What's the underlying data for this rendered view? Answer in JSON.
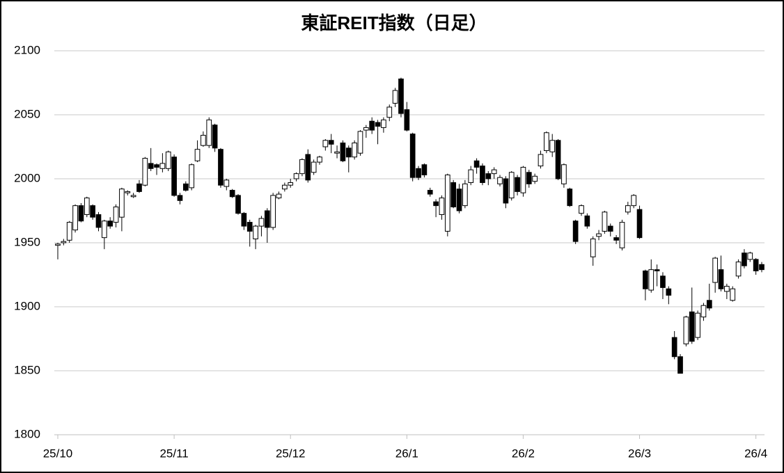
{
  "chart_data": {
    "type": "candlestick",
    "title": "東証REIT指数（日足）",
    "open": [
      1948,
      1950,
      1952,
      1960,
      1979,
      1972,
      1979,
      1972,
      1954,
      1967,
      1966,
      1970,
      1989,
      1986,
      1996,
      1995,
      2012,
      2011,
      2008,
      2008,
      2017,
      1987,
      1996,
      1993,
      2014,
      2026,
      2026,
      2042,
      2023,
      1994,
      1991,
      1987,
      1973,
      1966,
      1953,
      1963,
      1975,
      1962,
      1985,
      1992,
      1995,
      2000,
      2004,
      2019,
      2005,
      2013,
      2025,
      2030,
      2020,
      2028,
      2024,
      2017,
      2020,
      2038,
      2045,
      2044,
      2040,
      2048,
      2059,
      2078,
      2054,
      2035,
      2008,
      2011,
      1991,
      1982,
      1972,
      1959,
      1997,
      1992,
      1979,
      1997,
      2014,
      2010,
      2004,
      2004,
      1996,
      2000,
      1985,
      2001,
      1989,
      2005,
      1998,
      2010,
      2022,
      2021,
      2030,
      1996,
      1992,
      1967,
      1973,
      1971,
      1939,
      1955,
      1959,
      1963,
      1954,
      1946,
      1974,
      1979,
      1976,
      1928,
      1913,
      1929,
      1924,
      1914,
      1876,
      1861,
      1871,
      1896,
      1876,
      1892,
      1905,
      1919,
      1929,
      1912,
      1905,
      1924,
      1942,
      1937,
      1937,
      1933
    ],
    "high": [
      1950,
      1953,
      1967,
      1980,
      1981,
      1986,
      1980,
      1974,
      1968,
      1970,
      1980,
      1993,
      1991,
      1989,
      1999,
      2017,
      2024,
      2012,
      2020,
      2022,
      2019,
      1989,
      1998,
      2012,
      2030,
      2037,
      2048,
      2043,
      2024,
      2000,
      1992,
      1988,
      1974,
      1968,
      1964,
      1971,
      1977,
      1989,
      1990,
      1997,
      2000,
      2005,
      2016,
      2023,
      2015,
      2018,
      2031,
      2035,
      2026,
      2030,
      2026,
      2030,
      2038,
      2042,
      2048,
      2046,
      2048,
      2058,
      2071,
      2079,
      2060,
      2036,
      2010,
      2012,
      1993,
      1984,
      1987,
      2004,
      1999,
      1996,
      1999,
      2010,
      2016,
      2012,
      2006,
      2009,
      2003,
      2002,
      2006,
      2003,
      2010,
      2007,
      2004,
      2022,
      2037,
      2035,
      2031,
      2012,
      1993,
      1968,
      1980,
      1973,
      1955,
      1960,
      1975,
      1965,
      1956,
      1968,
      1982,
      1988,
      1979,
      1929,
      1937,
      1933,
      1927,
      1916,
      1881,
      1863,
      1893,
      1915,
      1897,
      1903,
      1918,
      1939,
      1940,
      1918,
      1916,
      1937,
      1945,
      1943,
      1938,
      1935
    ],
    "low": [
      1937,
      1948,
      1950,
      1958,
      1966,
      1970,
      1968,
      1959,
      1945,
      1961,
      1962,
      1959,
      1987,
      1985,
      1989,
      1994,
      2006,
      2003,
      2005,
      2006,
      1986,
      1980,
      1990,
      1991,
      2013,
      2025,
      2024,
      2021,
      1993,
      1991,
      1985,
      1972,
      1960,
      1947,
      1945,
      1955,
      1950,
      1960,
      1984,
      1990,
      1993,
      1998,
      2002,
      1997,
      2003,
      2011,
      2022,
      2020,
      2016,
      2013,
      2005,
      2015,
      2018,
      2032,
      2035,
      2027,
      2036,
      2045,
      2056,
      2048,
      2037,
      1998,
      1999,
      2001,
      1986,
      1970,
      1968,
      1955,
      1977,
      1973,
      1977,
      1995,
      2004,
      1995,
      1995,
      2000,
      1994,
      1977,
      1983,
      1987,
      1986,
      1993,
      1996,
      2008,
      2020,
      2017,
      1999,
      1993,
      1978,
      1949,
      1971,
      1961,
      1932,
      1952,
      1957,
      1955,
      1949,
      1944,
      1972,
      1977,
      1953,
      1905,
      1911,
      1916,
      1906,
      1902,
      1859,
      1848,
      1869,
      1871,
      1874,
      1889,
      1897,
      1911,
      1912,
      1906,
      1904,
      1922,
      1930,
      1935,
      1925,
      1927
    ],
    "close": [
      1949,
      1951,
      1966,
      1979,
      1967,
      1985,
      1970,
      1962,
      1967,
      1963,
      1978,
      1992,
      1990,
      1987,
      1990,
      2016,
      2008,
      2009,
      2012,
      2021,
      1987,
      1983,
      1991,
      2011,
      2023,
      2034,
      2046,
      2024,
      1995,
      1999,
      1986,
      1973,
      1963,
      1959,
      1963,
      1969,
      1962,
      1987,
      1988,
      1995,
      1997,
      2004,
      2015,
      1999,
      2013,
      2017,
      2030,
      2027,
      2021,
      2014,
      2017,
      2028,
      2037,
      2040,
      2038,
      2041,
      2046,
      2056,
      2069,
      2051,
      2038,
      2001,
      2001,
      2003,
      1988,
      1979,
      1985,
      2003,
      1978,
      1975,
      1996,
      2007,
      2009,
      1997,
      2000,
      2007,
      2001,
      1981,
      2005,
      1990,
      2009,
      1996,
      2002,
      2019,
      2036,
      2030,
      2000,
      2011,
      1979,
      1951,
      1979,
      1963,
      1953,
      1957,
      1974,
      1959,
      1952,
      1966,
      1979,
      1987,
      1954,
      1914,
      1929,
      1928,
      1915,
      1909,
      1861,
      1848,
      1892,
      1873,
      1895,
      1901,
      1899,
      1938,
      1914,
      1916,
      1914,
      1935,
      1932,
      1942,
      1928,
      1929
    ],
    "up_color": "#ffffff",
    "down_color": "#000000",
    "xlim": [
      0,
      121
    ],
    "xticks": [
      {
        "value": 0,
        "label": "25/10"
      },
      {
        "value": 20,
        "label": "25/11"
      },
      {
        "value": 40,
        "label": "25/12"
      },
      {
        "value": 60,
        "label": "26/1"
      },
      {
        "value": 80,
        "label": "26/2"
      },
      {
        "value": 100,
        "label": "26/3"
      },
      {
        "value": 120,
        "label": "26/4"
      }
    ],
    "ylim": [
      1800,
      2100
    ],
    "yticks": [
      1800,
      1850,
      1900,
      1950,
      2000,
      2050,
      2100
    ],
    "grid": true
  }
}
